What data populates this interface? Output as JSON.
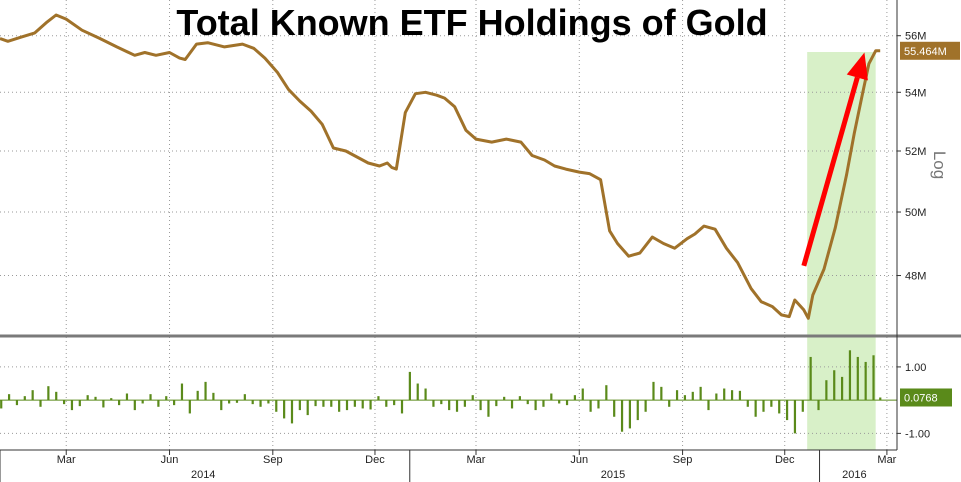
{
  "chart_data": [
    {
      "type": "line",
      "title": "Total Known ETF Holdings of Gold",
      "scale_label": "Log",
      "y_scale": "log",
      "grid": true,
      "y_ticks": [
        "56M",
        "54M",
        "52M",
        "50M",
        "48M"
      ],
      "y_tick_values": [
        56,
        54,
        52,
        50,
        48
      ],
      "ylim": [
        46.2,
        57.3
      ],
      "last_value_label": "55.464M",
      "line_color": "#a0722a",
      "highlight_color": "#d8f0c8",
      "arrow_color": "#ff0000",
      "highlight_range": [
        "2015-12-21",
        "2016-02-20"
      ],
      "arrow": {
        "from": [
          "2015-12-18",
          48.3
        ],
        "to": [
          "2016-02-10",
          55.4
        ]
      },
      "x": [
        "2014-01-01",
        "2014-01-08",
        "2014-01-20",
        "2014-02-01",
        "2014-02-12",
        "2014-02-20",
        "2014-03-01",
        "2014-03-15",
        "2014-03-31",
        "2014-04-15",
        "2014-05-01",
        "2014-05-10",
        "2014-05-20",
        "2014-06-01",
        "2014-06-10",
        "2014-06-15",
        "2014-06-25",
        "2014-07-05",
        "2014-07-20",
        "2014-08-05",
        "2014-08-15",
        "2014-08-25",
        "2014-09-05",
        "2014-09-15",
        "2014-09-25",
        "2014-10-05",
        "2014-10-15",
        "2014-10-25",
        "2014-11-05",
        "2014-11-15",
        "2014-11-25",
        "2014-12-05",
        "2014-12-12",
        "2014-12-16",
        "2014-12-20",
        "2014-12-28",
        "2015-01-06",
        "2015-01-15",
        "2015-01-25",
        "2015-02-01",
        "2015-02-10",
        "2015-02-20",
        "2015-03-01",
        "2015-03-15",
        "2015-03-28",
        "2015-04-10",
        "2015-04-20",
        "2015-05-01",
        "2015-05-10",
        "2015-05-20",
        "2015-06-01",
        "2015-06-10",
        "2015-06-20",
        "2015-06-28",
        "2015-07-05",
        "2015-07-15",
        "2015-07-25",
        "2015-08-05",
        "2015-08-15",
        "2015-08-25",
        "2015-09-05",
        "2015-09-12",
        "2015-09-20",
        "2015-09-30",
        "2015-10-10",
        "2015-10-20",
        "2015-11-01",
        "2015-11-10",
        "2015-11-20",
        "2015-11-28",
        "2015-12-05",
        "2015-12-10",
        "2015-12-18",
        "2015-12-22",
        "2015-12-26",
        "2016-01-05",
        "2016-01-15",
        "2016-01-25",
        "2016-02-01",
        "2016-02-08",
        "2016-02-14",
        "2016-02-20",
        "2016-02-24"
      ],
      "y": [
        55.9,
        55.8,
        55.95,
        56.1,
        56.5,
        56.75,
        56.6,
        56.2,
        55.9,
        55.6,
        55.3,
        55.4,
        55.3,
        55.4,
        55.2,
        55.15,
        55.7,
        55.75,
        55.6,
        55.7,
        55.55,
        55.2,
        54.7,
        54.1,
        53.7,
        53.35,
        52.9,
        52.1,
        52.0,
        51.8,
        51.6,
        51.5,
        51.6,
        51.45,
        51.4,
        53.3,
        53.95,
        54.0,
        53.9,
        53.8,
        53.5,
        52.7,
        52.4,
        52.3,
        52.4,
        52.3,
        51.85,
        51.7,
        51.5,
        51.4,
        51.3,
        51.25,
        51.05,
        49.4,
        49.0,
        48.6,
        48.7,
        49.2,
        49.0,
        48.85,
        49.15,
        49.3,
        49.55,
        49.45,
        48.85,
        48.4,
        47.6,
        47.2,
        47.05,
        46.8,
        46.75,
        47.25,
        46.95,
        46.7,
        47.4,
        48.2,
        49.5,
        51.2,
        52.6,
        53.9,
        55.0,
        55.46,
        55.46
      ]
    },
    {
      "type": "bar",
      "y_ticks": [
        "1.00",
        "-1.00"
      ],
      "y_tick_values": [
        1.0,
        -1.0
      ],
      "ylim": [
        -1.5,
        1.9
      ],
      "last_value_label": "0.0768",
      "bar_color": "#5a8a1a",
      "x": [
        "2014-01-02",
        "2014-01-09",
        "2014-01-16",
        "2014-01-23",
        "2014-01-30",
        "2014-02-06",
        "2014-02-13",
        "2014-02-20",
        "2014-02-27",
        "2014-03-06",
        "2014-03-13",
        "2014-03-20",
        "2014-03-27",
        "2014-04-03",
        "2014-04-10",
        "2014-04-17",
        "2014-04-24",
        "2014-05-01",
        "2014-05-08",
        "2014-05-15",
        "2014-05-22",
        "2014-05-29",
        "2014-06-05",
        "2014-06-12",
        "2014-06-19",
        "2014-06-26",
        "2014-07-03",
        "2014-07-10",
        "2014-07-17",
        "2014-07-24",
        "2014-07-31",
        "2014-08-07",
        "2014-08-14",
        "2014-08-21",
        "2014-08-28",
        "2014-09-04",
        "2014-09-11",
        "2014-09-18",
        "2014-09-25",
        "2014-10-02",
        "2014-10-09",
        "2014-10-16",
        "2014-10-23",
        "2014-10-30",
        "2014-11-06",
        "2014-11-13",
        "2014-11-20",
        "2014-11-27",
        "2014-12-04",
        "2014-12-11",
        "2014-12-18",
        "2014-12-25",
        "2015-01-01",
        "2015-01-08",
        "2015-01-15",
        "2015-01-22",
        "2015-01-29",
        "2015-02-05",
        "2015-02-12",
        "2015-02-19",
        "2015-02-26",
        "2015-03-05",
        "2015-03-12",
        "2015-03-19",
        "2015-03-26",
        "2015-04-02",
        "2015-04-09",
        "2015-04-16",
        "2015-04-23",
        "2015-04-30",
        "2015-05-07",
        "2015-05-14",
        "2015-05-21",
        "2015-05-28",
        "2015-06-04",
        "2015-06-11",
        "2015-06-18",
        "2015-06-25",
        "2015-07-02",
        "2015-07-09",
        "2015-07-16",
        "2015-07-23",
        "2015-07-30",
        "2015-08-06",
        "2015-08-13",
        "2015-08-20",
        "2015-08-27",
        "2015-09-03",
        "2015-09-10",
        "2015-09-17",
        "2015-09-24",
        "2015-10-01",
        "2015-10-08",
        "2015-10-15",
        "2015-10-22",
        "2015-10-29",
        "2015-11-05",
        "2015-11-12",
        "2015-11-19",
        "2015-11-26",
        "2015-12-03",
        "2015-12-10",
        "2015-12-17",
        "2015-12-24",
        "2015-12-31",
        "2016-01-07",
        "2016-01-14",
        "2016-01-21",
        "2016-01-28",
        "2016-02-04",
        "2016-02-11",
        "2016-02-18",
        "2016-02-24"
      ],
      "values": [
        -0.25,
        0.18,
        -0.15,
        0.12,
        0.3,
        -0.2,
        0.42,
        0.25,
        -0.12,
        -0.3,
        -0.18,
        0.15,
        0.1,
        -0.22,
        0.06,
        -0.15,
        0.2,
        -0.3,
        -0.1,
        0.18,
        -0.2,
        0.12,
        -0.15,
        0.5,
        -0.4,
        0.28,
        0.55,
        0.22,
        -0.3,
        -0.1,
        -0.08,
        0.18,
        -0.12,
        -0.2,
        -0.1,
        -0.35,
        -0.55,
        -0.7,
        -0.3,
        -0.45,
        -0.18,
        -0.2,
        -0.2,
        -0.35,
        -0.3,
        -0.2,
        -0.25,
        -0.28,
        0.12,
        -0.2,
        -0.15,
        -0.4,
        0.85,
        0.5,
        0.35,
        -0.2,
        -0.12,
        -0.3,
        -0.35,
        -0.2,
        0.15,
        -0.3,
        -0.5,
        -0.18,
        0.1,
        -0.25,
        0.12,
        -0.12,
        -0.3,
        -0.2,
        0.2,
        -0.1,
        -0.15,
        0.15,
        0.35,
        -0.35,
        -0.25,
        0.45,
        -0.5,
        -0.95,
        -0.85,
        -0.6,
        -0.35,
        0.55,
        0.4,
        -0.2,
        0.3,
        0.15,
        0.25,
        0.4,
        -0.3,
        0.2,
        0.35,
        0.3,
        0.28,
        -0.2,
        -0.5,
        -0.35,
        -0.2,
        -0.4,
        -0.6,
        -1.0,
        -0.35,
        1.3,
        -0.3,
        0.6,
        0.9,
        0.7,
        1.5,
        1.3,
        1.15,
        1.35,
        0.08
      ]
    }
  ],
  "x_axis": {
    "month_labels": [
      {
        "label": "Mar",
        "date": "2014-03-01"
      },
      {
        "label": "Jun",
        "date": "2014-06-01"
      },
      {
        "label": "Sep",
        "date": "2014-09-01"
      },
      {
        "label": "Dec",
        "date": "2014-12-01"
      },
      {
        "label": "Mar",
        "date": "2015-03-01"
      },
      {
        "label": "Jun",
        "date": "2015-06-01"
      },
      {
        "label": "Sep",
        "date": "2015-09-01"
      },
      {
        "label": "Dec",
        "date": "2015-12-01"
      },
      {
        "label": "Mar",
        "date": "2016-03-01"
      }
    ],
    "year_labels": [
      {
        "label": "2014",
        "date": "2014-07-01"
      },
      {
        "label": "2015",
        "date": "2015-07-01"
      },
      {
        "label": "2016",
        "date": "2016-02-01"
      }
    ],
    "range": [
      "2014-01-01",
      "2016-03-10"
    ]
  }
}
